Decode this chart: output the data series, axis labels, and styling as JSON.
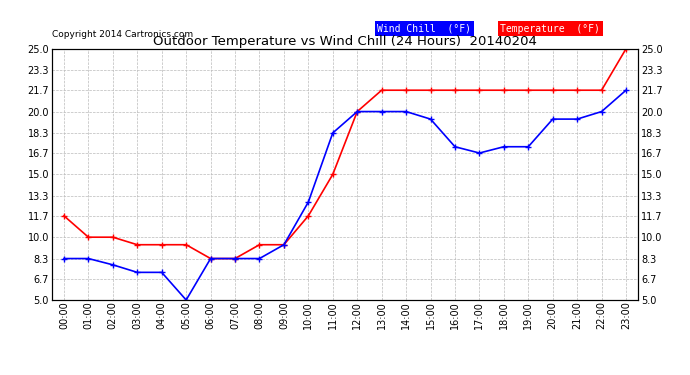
{
  "title": "Outdoor Temperature vs Wind Chill (24 Hours)  20140204",
  "copyright_text": "Copyright 2014 Cartronics.com",
  "x_labels": [
    "00:00",
    "01:00",
    "02:00",
    "03:00",
    "04:00",
    "05:00",
    "06:00",
    "07:00",
    "08:00",
    "09:00",
    "10:00",
    "11:00",
    "12:00",
    "13:00",
    "14:00",
    "15:00",
    "16:00",
    "17:00",
    "18:00",
    "19:00",
    "20:00",
    "21:00",
    "22:00",
    "23:00"
  ],
  "temperature": [
    11.7,
    10.0,
    10.0,
    9.4,
    9.4,
    9.4,
    8.3,
    8.3,
    9.4,
    9.4,
    11.7,
    15.0,
    20.0,
    21.7,
    21.7,
    21.7,
    21.7,
    21.7,
    21.7,
    21.7,
    21.7,
    21.7,
    21.7,
    25.0
  ],
  "wind_chill": [
    8.3,
    8.3,
    7.8,
    7.2,
    7.2,
    5.0,
    8.3,
    8.3,
    8.3,
    9.4,
    12.8,
    18.3,
    20.0,
    20.0,
    20.0,
    19.4,
    17.2,
    16.7,
    17.2,
    17.2,
    19.4,
    19.4,
    20.0,
    21.7
  ],
  "temp_color": "#ff0000",
  "wind_chill_color": "#0000ff",
  "bg_color": "#ffffff",
  "plot_bg_color": "#ffffff",
  "grid_color": "#bbbbbb",
  "ylim_min": 5.0,
  "ylim_max": 25.0,
  "yticks": [
    5.0,
    6.7,
    8.3,
    10.0,
    11.7,
    13.3,
    15.0,
    16.7,
    18.3,
    20.0,
    21.7,
    23.3,
    25.0
  ],
  "legend_wc_bg": "#0000ff",
  "legend_wc_fg": "#ffffff",
  "legend_temp_bg": "#ff0000",
  "legend_temp_fg": "#ffffff",
  "legend_wc_label": "Wind Chill  (°F)",
  "legend_temp_label": "Temperature  (°F)"
}
